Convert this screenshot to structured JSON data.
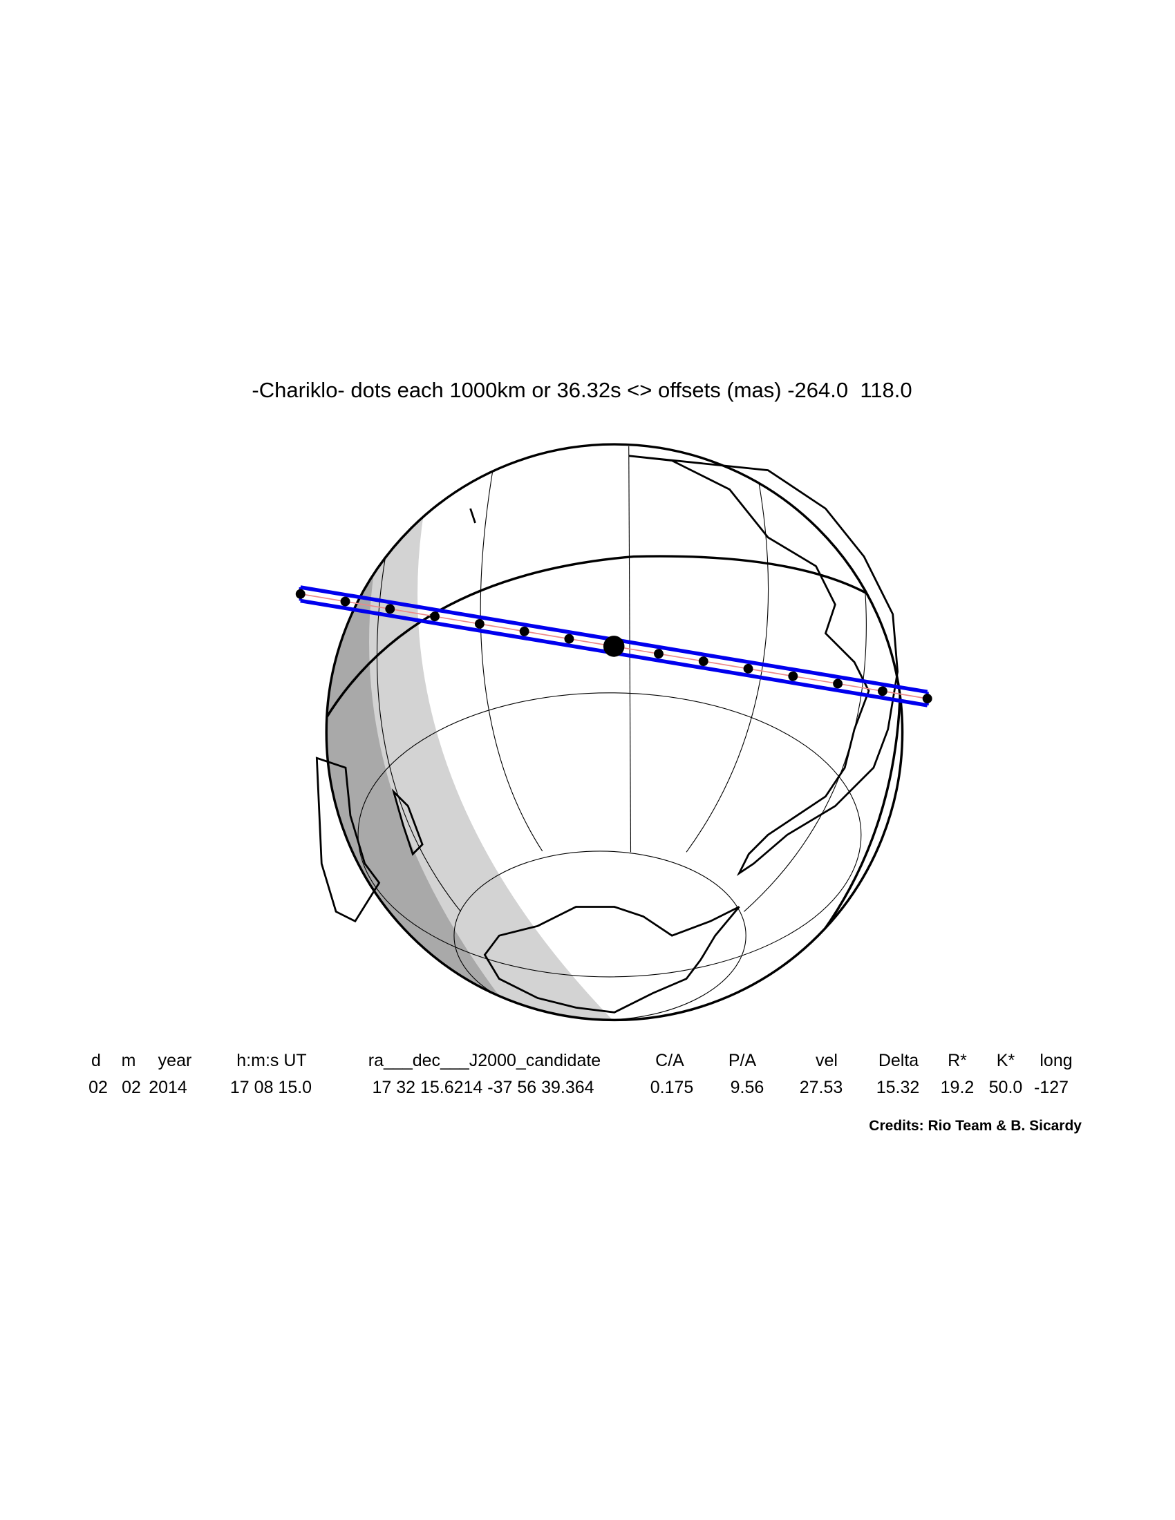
{
  "title": "-Chariklo- dots each 1000km or 36.32s <> offsets (mas) -264.0  118.0",
  "table": {
    "header": [
      "d",
      "m",
      "year",
      "h:m:s UT",
      "ra___dec___J2000_candidate",
      "C/A",
      "P/A",
      "vel",
      "Delta",
      "R*",
      "K*",
      "long"
    ],
    "row": [
      "02",
      "02",
      "2014",
      "17 08 15.0",
      "17 32 15.6214 -37 56 39.364",
      "0.175",
      "9.56",
      "27.53",
      "15.32",
      "19.2",
      "50.0",
      "-127"
    ]
  },
  "credits": "Credits: Rio Team & B. Sicardy"
}
